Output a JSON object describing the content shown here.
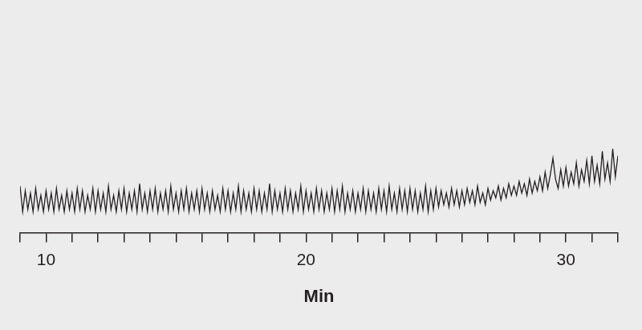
{
  "chart_data": {
    "type": "line",
    "x_label": "Min",
    "color": "#231f20",
    "xlim": [
      9,
      32
    ],
    "xticks": [
      10,
      20,
      30
    ],
    "xticks_minor": [
      9,
      11,
      12,
      13,
      14,
      15,
      16,
      17,
      18,
      19,
      21,
      22,
      23,
      24,
      25,
      26,
      27,
      28,
      29,
      31,
      32
    ],
    "ylim": [
      0,
      100
    ],
    "grid": false,
    "tick_labels": "x",
    "x": [
      9,
      9.1,
      9.2,
      9.3,
      9.4,
      9.5,
      9.6,
      9.7,
      9.8,
      9.9,
      10,
      10.1,
      10.2,
      10.3,
      10.4,
      10.5,
      10.6,
      10.7,
      10.8,
      10.9,
      11,
      11.1,
      11.2,
      11.3,
      11.4,
      11.5,
      11.6,
      11.7,
      11.8,
      11.9,
      12,
      12.1,
      12.2,
      12.3,
      12.4,
      12.5,
      12.6,
      12.7,
      12.8,
      12.9,
      13,
      13.1,
      13.2,
      13.3,
      13.4,
      13.5,
      13.6,
      13.7,
      13.8,
      13.9,
      14,
      14.1,
      14.2,
      14.3,
      14.4,
      14.5,
      14.6,
      14.7,
      14.8,
      14.9,
      15,
      15.1,
      15.2,
      15.3,
      15.4,
      15.5,
      15.6,
      15.7,
      15.8,
      15.9,
      16,
      16.1,
      16.2,
      16.3,
      16.4,
      16.5,
      16.6,
      16.7,
      16.8,
      16.9,
      17,
      17.1,
      17.2,
      17.3,
      17.4,
      17.5,
      17.6,
      17.7,
      17.8,
      17.9,
      18,
      18.1,
      18.2,
      18.3,
      18.4,
      18.5,
      18.6,
      18.7,
      18.8,
      18.9,
      19,
      19.1,
      19.2,
      19.3,
      19.4,
      19.5,
      19.6,
      19.7,
      19.8,
      19.9,
      20,
      20.1,
      20.2,
      20.3,
      20.4,
      20.5,
      20.6,
      20.7,
      20.8,
      20.9,
      21,
      21.1,
      21.2,
      21.3,
      21.4,
      21.5,
      21.6,
      21.7,
      21.8,
      21.9,
      22,
      22.1,
      22.2,
      22.3,
      22.4,
      22.5,
      22.6,
      22.7,
      22.8,
      22.9,
      23,
      23.1,
      23.2,
      23.3,
      23.4,
      23.5,
      23.6,
      23.7,
      23.8,
      23.9,
      24,
      24.1,
      24.2,
      24.3,
      24.4,
      24.5,
      24.6,
      24.7,
      24.8,
      24.9,
      25,
      25.1,
      25.2,
      25.3,
      25.4,
      25.5,
      25.6,
      25.7,
      25.8,
      25.9,
      26,
      26.1,
      26.2,
      26.3,
      26.4,
      26.5,
      26.6,
      26.7,
      26.8,
      26.9,
      27,
      27.1,
      27.2,
      27.3,
      27.4,
      27.5,
      27.6,
      27.7,
      27.8,
      27.9,
      28,
      28.1,
      28.2,
      28.3,
      28.4,
      28.5,
      28.6,
      28.7,
      28.8,
      28.9,
      29,
      29.1,
      29.2,
      29.3,
      29.4,
      29.5,
      29.6,
      29.7,
      29.8,
      29.9,
      30,
      30.1,
      30.2,
      30.3,
      30.4,
      30.5,
      30.6,
      30.7,
      30.8,
      30.9,
      31,
      31.1,
      31.2,
      31.3,
      31.4,
      31.5,
      31.6,
      31.7,
      31.8,
      31.9,
      32
    ],
    "values": [
      20,
      9,
      18,
      10,
      17,
      9,
      19,
      10,
      16,
      9,
      18,
      10,
      17,
      9,
      19,
      10,
      16,
      9,
      18,
      10,
      17,
      9,
      19,
      10,
      18,
      9,
      16,
      10,
      19,
      9,
      18,
      10,
      17,
      9,
      20,
      10,
      16,
      9,
      18,
      10,
      19,
      9,
      17,
      10,
      18,
      9,
      21,
      10,
      17,
      9,
      18,
      10,
      19,
      9,
      17,
      10,
      18,
      9,
      20,
      10,
      17,
      9,
      18,
      10,
      19,
      9,
      17,
      10,
      18,
      9,
      19,
      10,
      17,
      9,
      18,
      10,
      16,
      9,
      19,
      10,
      18,
      9,
      17,
      10,
      20,
      9,
      18,
      10,
      17,
      9,
      19,
      10,
      18,
      9,
      17,
      10,
      21,
      9,
      18,
      10,
      17,
      9,
      19,
      10,
      18,
      9,
      17,
      10,
      20,
      9,
      18,
      10,
      17,
      9,
      19,
      10,
      18,
      9,
      17,
      10,
      19,
      9,
      18,
      10,
      20,
      9,
      17,
      10,
      18,
      9,
      17,
      10,
      19,
      9,
      18,
      10,
      17,
      9,
      19,
      10,
      18,
      9,
      20,
      10,
      17,
      9,
      19,
      10,
      18,
      9,
      19,
      10,
      18,
      9,
      17,
      10,
      20,
      9,
      18,
      10,
      19,
      11,
      18,
      12,
      17,
      11,
      19,
      12,
      18,
      11,
      18,
      12,
      19,
      13,
      18,
      12,
      20,
      13,
      17,
      12,
      19,
      14,
      18,
      15,
      20,
      14,
      19,
      15,
      21,
      16,
      20,
      16,
      22,
      17,
      21,
      16,
      23,
      17,
      22,
      18,
      24,
      18,
      26,
      19,
      25,
      32,
      23,
      19,
      27,
      20,
      28,
      20,
      26,
      21,
      30,
      20,
      27,
      22,
      31,
      21,
      33,
      22,
      29,
      21,
      35,
      23,
      30,
      22,
      36,
      24,
      33
    ]
  }
}
